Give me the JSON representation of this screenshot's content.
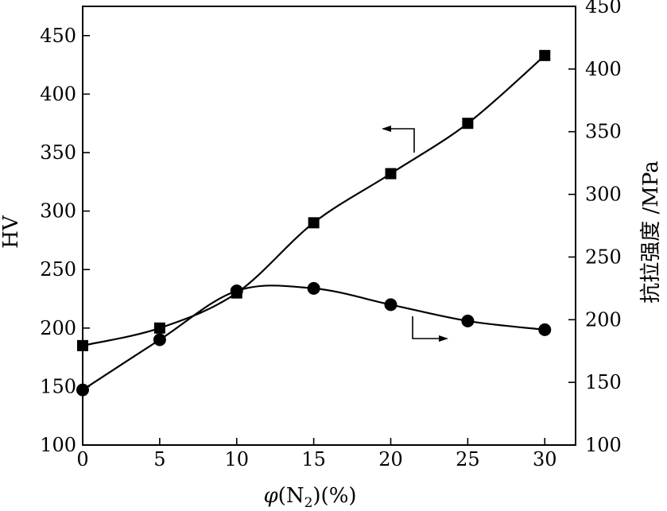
{
  "chart_data": {
    "type": "line",
    "x": [
      0,
      5,
      10,
      15,
      20,
      25,
      30
    ],
    "xlabel_parts": {
      "var": "φ",
      "open": "(N",
      "sub": "2",
      "close": ")(%)"
    },
    "xlim": [
      0,
      32
    ],
    "x_ticks": [
      "0",
      "5",
      "10",
      "15",
      "20",
      "25",
      "30"
    ],
    "left_axis": {
      "label": "HV",
      "ylim": [
        100,
        475
      ],
      "ticks": [
        "100",
        "150",
        "200",
        "250",
        "300",
        "350",
        "400",
        "450"
      ]
    },
    "right_axis": {
      "label": "抗拉强度 /MPa",
      "ylim": [
        100,
        450
      ],
      "ticks": [
        "100",
        "150",
        "200",
        "250",
        "300",
        "350",
        "400",
        "450"
      ]
    },
    "series": [
      {
        "marker": "square",
        "axis": "left",
        "values": [
          185,
          200,
          230,
          290,
          332,
          375,
          433
        ]
      },
      {
        "marker": "circle",
        "axis": "right",
        "values": [
          144,
          184,
          223,
          225,
          212,
          199,
          192
        ]
      }
    ],
    "grid": false
  }
}
